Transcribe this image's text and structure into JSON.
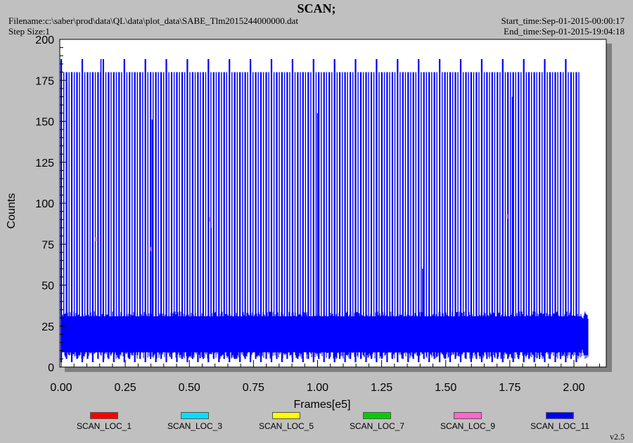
{
  "header": {
    "title": "SCAN;",
    "filename": "Filename:c:\\saber\\prod\\data\\QL\\data\\plot_data\\SABE_Tlm2015244000000.dat",
    "step_size": "Step Size:1",
    "start_time": "Start_time:Sep-01-2015-00:00:17",
    "end_time": "End_time:Sep-01-2015-19:04:18"
  },
  "footer": {
    "version": "v2.5"
  },
  "colors": {
    "plot_background": "#ffffff",
    "window_background": "#c0c0c0",
    "main_series": "#0000ff"
  },
  "chart_data": {
    "type": "line",
    "title": "SCAN;",
    "xlabel": "Frames[e5]",
    "ylabel": "Counts",
    "xlim": [
      0.0,
      2.15
    ],
    "ylim": [
      0,
      200
    ],
    "xticks": [
      "0.00",
      "0.25",
      "0.50",
      "0.75",
      "1.00",
      "1.25",
      "1.50",
      "1.75",
      "2.00"
    ],
    "xtick_values": [
      0.0,
      0.25,
      0.5,
      0.75,
      1.0,
      1.25,
      1.5,
      1.75,
      2.0
    ],
    "yticks": [
      "0",
      "25",
      "50",
      "75",
      "100",
      "125",
      "150",
      "175",
      "200"
    ],
    "ytick_values": [
      0,
      25,
      50,
      75,
      100,
      125,
      150,
      175,
      200
    ],
    "grid": false,
    "legend_position": "bottom",
    "series": [
      {
        "name": "SCAN_LOC_1",
        "color": "#ff0000",
        "values": []
      },
      {
        "name": "SCAN_LOC_3",
        "color": "#00e0ff",
        "values": []
      },
      {
        "name": "SCAN_LOC_5",
        "color": "#ffff00",
        "values": []
      },
      {
        "name": "SCAN_LOC_7",
        "color": "#00d000",
        "values": []
      },
      {
        "name": "SCAN_LOC_9",
        "color": "#ff66cc",
        "values": [
          {
            "x": 0.135,
            "y": 78
          },
          {
            "x": 0.35,
            "y": 72
          },
          {
            "x": 0.58,
            "y": 90
          },
          {
            "x": 1.74,
            "y": 92
          }
        ]
      },
      {
        "name": "SCAN_LOC_11",
        "color": "#0000ff",
        "band_range": [
          9,
          31
        ],
        "band_x_range": [
          0.0,
          2.03
        ],
        "spike_tops": [
          180,
          188
        ],
        "spike_spacing": 0.0205,
        "spike_x_range": [
          0.0,
          2.01
        ],
        "occasional_peaks": [
          {
            "x": 0.155,
            "y": 188
          },
          {
            "x": 0.355,
            "y": 151
          },
          {
            "x": 0.585,
            "y": 85
          },
          {
            "x": 1.0,
            "y": 155
          },
          {
            "x": 1.005,
            "y": 108
          },
          {
            "x": 1.41,
            "y": 60
          },
          {
            "x": 1.76,
            "y": 165
          },
          {
            "x": 1.86,
            "y": 17
          }
        ],
        "dips": [
          3,
          5
        ]
      }
    ]
  }
}
